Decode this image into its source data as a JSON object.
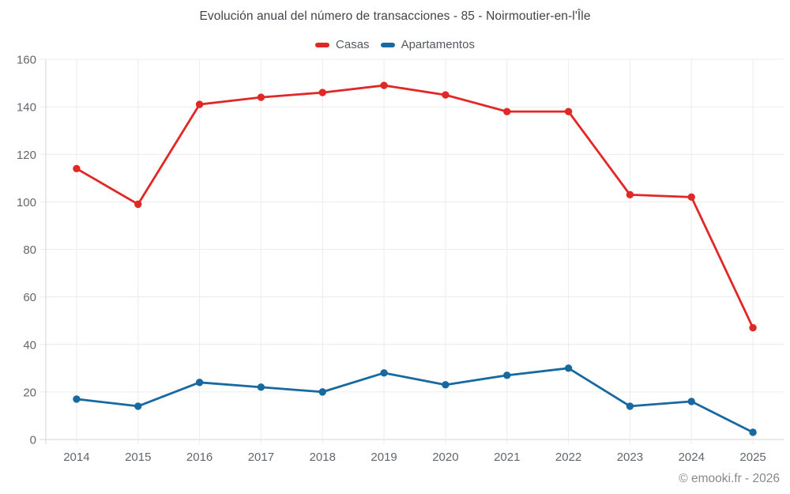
{
  "title": "Evolución anual del número de transacciones - 85 - Noirmoutier-en-l'Île",
  "footer": "© emooki.fr - 2026",
  "chart_data": {
    "type": "line",
    "categories": [
      "2014",
      "2015",
      "2016",
      "2017",
      "2018",
      "2019",
      "2020",
      "2021",
      "2022",
      "2023",
      "2024",
      "2025"
    ],
    "series": [
      {
        "name": "Casas",
        "color": "#e02826",
        "values": [
          114,
          99,
          141,
          144,
          146,
          149,
          145,
          138,
          138,
          103,
          102,
          47
        ]
      },
      {
        "name": "Apartamentos",
        "color": "#17699f",
        "values": [
          17,
          14,
          24,
          22,
          20,
          28,
          23,
          27,
          30,
          14,
          16,
          3
        ]
      }
    ],
    "title": "Evolución anual del número de transacciones - 85 - Noirmoutier-en-l'Île",
    "xlabel": "",
    "ylabel": "",
    "ylim": [
      0,
      160
    ],
    "ytick_step": 20,
    "grid": true,
    "legend_position": "top"
  }
}
